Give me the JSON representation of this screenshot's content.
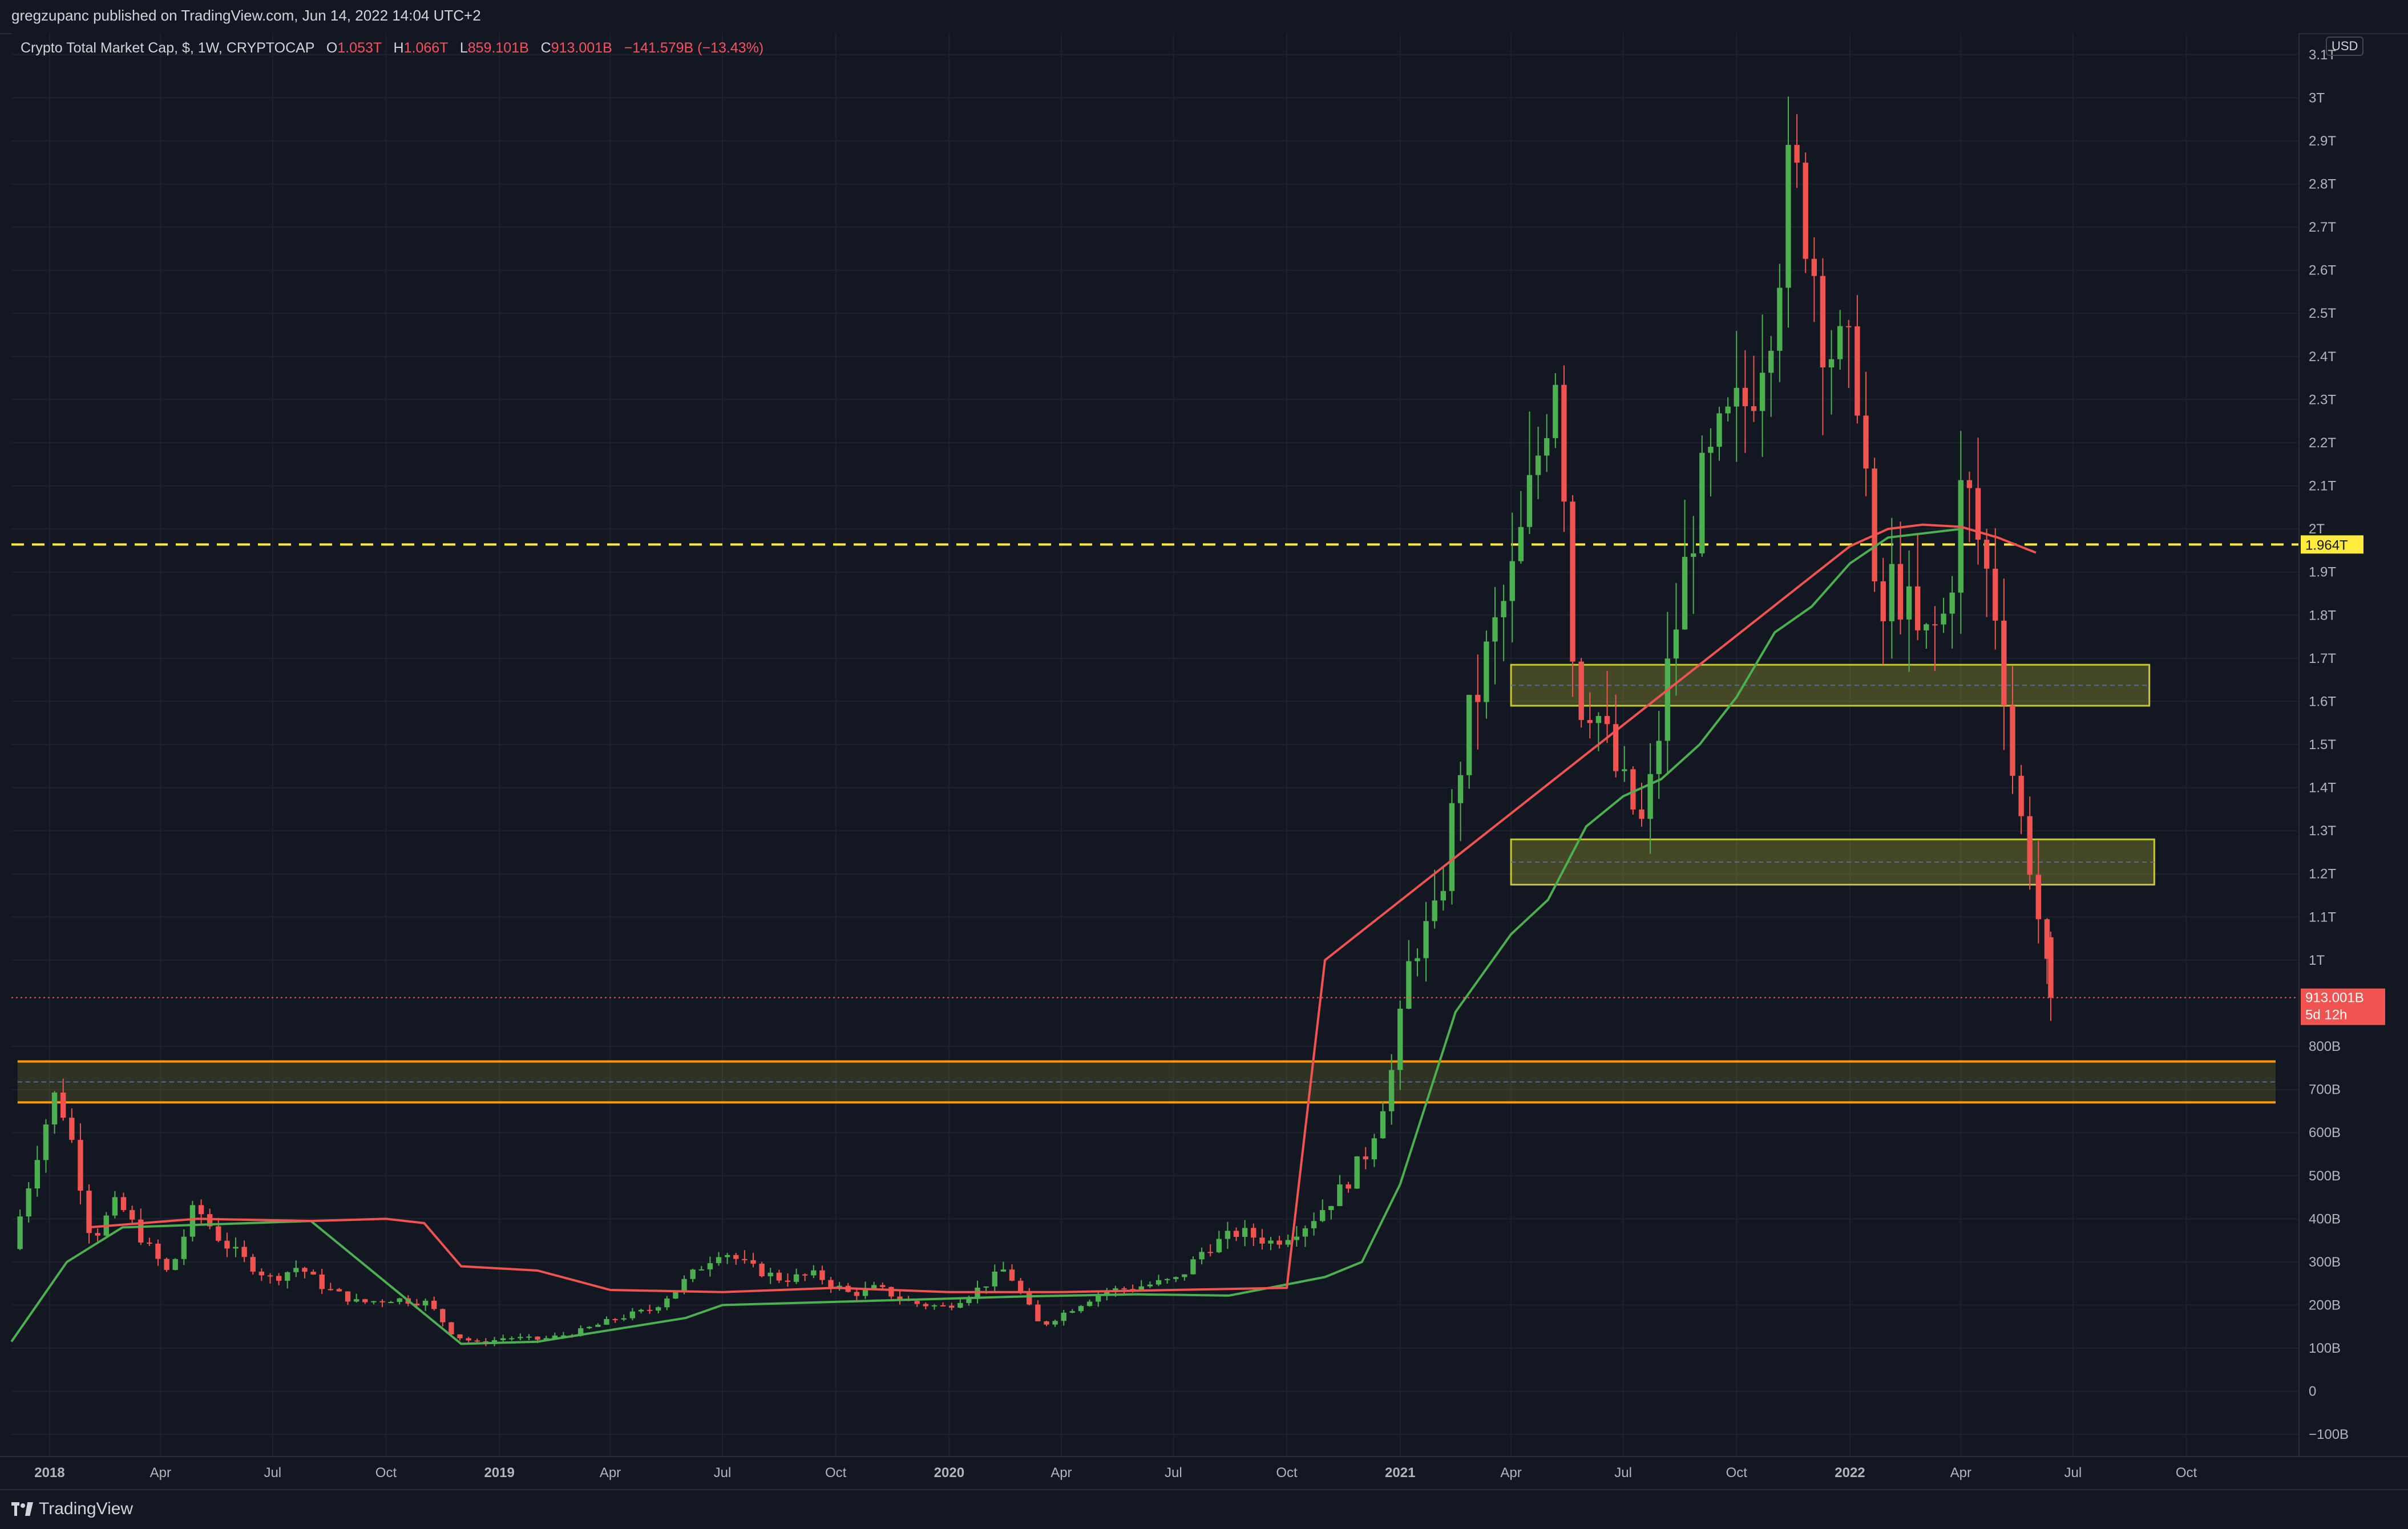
{
  "publisher_line": "gregzupanc published on TradingView.com, Jun 14, 2022 14:04 UTC+2",
  "legend": {
    "symbol": "Crypto Total Market Cap, $, 1W, CRYPTOCAP",
    "o_label": "O",
    "o_value": "1.053T",
    "h_label": "H",
    "h_value": "1.066T",
    "l_label": "L",
    "l_value": "859.101B",
    "c_label": "C",
    "c_value": "913.001B",
    "change": "−141.579B (−13.43%)"
  },
  "currency": "USD",
  "footer": {
    "brand": "TradingView"
  },
  "colors": {
    "background": "#131722",
    "up": "#4caf50",
    "down": "#f05350",
    "ma_green": "#4caf50",
    "ma_red": "#f05350",
    "resistance_line": "#ffeb3b",
    "support_band": "#ff9800",
    "zone": "#c8c832",
    "last_price": "#f05350"
  },
  "chart_data": {
    "type": "candlestick",
    "title": "Crypto Total Market Cap, $, 1W, CRYPTOCAP",
    "timeframe": "1W",
    "x_range": [
      "2017-12-01",
      "2022-12-31"
    ],
    "y_range": [
      -150,
      3150
    ],
    "y_unit": "B",
    "y_tick_labels": [
      "3.1T",
      "3T",
      "2.9T",
      "2.8T",
      "2.7T",
      "2.6T",
      "2.5T",
      "2.4T",
      "2.3T",
      "2.2T",
      "2.1T",
      "2T",
      "1.9T",
      "1.8T",
      "1.7T",
      "1.6T",
      "1.5T",
      "1.4T",
      "1.3T",
      "1.2T",
      "1.1T",
      "1T",
      "800B",
      "700B",
      "600B",
      "500B",
      "400B",
      "300B",
      "200B",
      "100B",
      "0",
      "−100B"
    ],
    "y_tick_values": [
      3100,
      3000,
      2900,
      2800,
      2700,
      2600,
      2500,
      2400,
      2300,
      2200,
      2100,
      2000,
      1900,
      1800,
      1700,
      1600,
      1500,
      1400,
      1300,
      1200,
      1100,
      1000,
      800,
      700,
      600,
      500,
      400,
      300,
      200,
      100,
      0,
      -100
    ],
    "x_ticks": [
      {
        "label": "2018",
        "date": "2018-01-01",
        "bold": true
      },
      {
        "label": "Apr",
        "date": "2018-04-01"
      },
      {
        "label": "Jul",
        "date": "2018-07-01"
      },
      {
        "label": "Oct",
        "date": "2018-10-01"
      },
      {
        "label": "2019",
        "date": "2019-01-01",
        "bold": true
      },
      {
        "label": "Apr",
        "date": "2019-04-01"
      },
      {
        "label": "Jul",
        "date": "2019-07-01"
      },
      {
        "label": "Oct",
        "date": "2019-10-01"
      },
      {
        "label": "2020",
        "date": "2020-01-01",
        "bold": true
      },
      {
        "label": "Apr",
        "date": "2020-04-01"
      },
      {
        "label": "Jul",
        "date": "2020-07-01"
      },
      {
        "label": "Oct",
        "date": "2020-10-01"
      },
      {
        "label": "2021",
        "date": "2021-01-01",
        "bold": true
      },
      {
        "label": "Apr",
        "date": "2021-04-01"
      },
      {
        "label": "Jul",
        "date": "2021-07-01"
      },
      {
        "label": "Oct",
        "date": "2021-10-01"
      },
      {
        "label": "2022",
        "date": "2022-01-01",
        "bold": true
      },
      {
        "label": "Apr",
        "date": "2022-04-01"
      },
      {
        "label": "Jul",
        "date": "2022-07-01"
      },
      {
        "label": "Oct",
        "date": "2022-10-01"
      }
    ],
    "close_path": [
      [
        "2017-12-01",
        330
      ],
      [
        "2017-12-25",
        590
      ],
      [
        "2018-01-07",
        700
      ],
      [
        "2018-01-21",
        560
      ],
      [
        "2018-02-04",
        350
      ],
      [
        "2018-02-25",
        440
      ],
      [
        "2018-03-18",
        350
      ],
      [
        "2018-04-08",
        270
      ],
      [
        "2018-04-29",
        430
      ],
      [
        "2018-05-20",
        350
      ],
      [
        "2018-06-10",
        300
      ],
      [
        "2018-06-30",
        260
      ],
      [
        "2018-07-22",
        290
      ],
      [
        "2018-08-12",
        240
      ],
      [
        "2018-09-09",
        205
      ],
      [
        "2018-10-07",
        215
      ],
      [
        "2018-11-04",
        205
      ],
      [
        "2018-11-25",
        130
      ],
      [
        "2018-12-16",
        110
      ],
      [
        "2019-01-06",
        125
      ],
      [
        "2019-02-03",
        120
      ],
      [
        "2019-03-03",
        135
      ],
      [
        "2019-04-07",
        170
      ],
      [
        "2019-05-05",
        190
      ],
      [
        "2019-06-02",
        260
      ],
      [
        "2019-06-30",
        330
      ],
      [
        "2019-07-21",
        290
      ],
      [
        "2019-08-18",
        260
      ],
      [
        "2019-09-15",
        270
      ],
      [
        "2019-10-13",
        225
      ],
      [
        "2019-11-03",
        240
      ],
      [
        "2019-12-01",
        205
      ],
      [
        "2019-12-29",
        195
      ],
      [
        "2020-01-26",
        240
      ],
      [
        "2020-02-16",
        285
      ],
      [
        "2020-03-15",
        150
      ],
      [
        "2020-04-05",
        185
      ],
      [
        "2020-05-03",
        230
      ],
      [
        "2020-06-07",
        245
      ],
      [
        "2020-07-05",
        260
      ],
      [
        "2020-07-26",
        330
      ],
      [
        "2020-08-23",
        370
      ],
      [
        "2020-09-20",
        345
      ],
      [
        "2020-10-18",
        390
      ],
      [
        "2020-11-15",
        470
      ],
      [
        "2020-12-06",
        560
      ],
      [
        "2020-12-27",
        760
      ],
      [
        "2021-01-10",
        1020
      ],
      [
        "2021-01-31",
        1100
      ],
      [
        "2021-02-21",
        1500
      ],
      [
        "2021-03-14",
        1720
      ],
      [
        "2021-04-04",
        1900
      ],
      [
        "2021-04-18",
        2100
      ],
      [
        "2021-05-09",
        2420
      ],
      [
        "2021-05-23",
        1600
      ],
      [
        "2021-06-06",
        1610
      ],
      [
        "2021-06-27",
        1420
      ],
      [
        "2021-07-18",
        1300
      ],
      [
        "2021-08-08",
        1700
      ],
      [
        "2021-08-29",
        2050
      ],
      [
        "2021-09-19",
        2200
      ],
      [
        "2021-10-10",
        2300
      ],
      [
        "2021-10-31",
        2550
      ],
      [
        "2021-11-14",
        2830
      ],
      [
        "2021-11-28",
        2700
      ],
      [
        "2021-12-12",
        2450
      ],
      [
        "2021-12-26",
        2380
      ],
      [
        "2022-01-09",
        2350
      ],
      [
        "2022-01-23",
        1720
      ],
      [
        "2022-02-06",
        1900
      ],
      [
        "2022-02-27",
        1720
      ],
      [
        "2022-03-20",
        1800
      ],
      [
        "2022-04-03",
        2120
      ],
      [
        "2022-04-17",
        1950
      ],
      [
        "2022-05-01",
        1800
      ],
      [
        "2022-05-15",
        1380
      ],
      [
        "2022-05-29",
        1210
      ],
      [
        "2022-06-05",
        1053
      ],
      [
        "2022-06-13",
        913
      ]
    ],
    "last_candle": {
      "date": "2022-06-13",
      "open": 1053,
      "high": 1066,
      "low": 859,
      "close": 913
    },
    "ma_green": [
      [
        "2017-12-01",
        115
      ],
      [
        "2018-01-15",
        300
      ],
      [
        "2018-03-01",
        380
      ],
      [
        "2018-08-01",
        395
      ],
      [
        "2018-12-01",
        110
      ],
      [
        "2019-02-01",
        115
      ],
      [
        "2019-06-01",
        170
      ],
      [
        "2019-07-01",
        200
      ],
      [
        "2019-11-01",
        210
      ],
      [
        "2020-03-01",
        220
      ],
      [
        "2020-06-01",
        225
      ],
      [
        "2020-08-15",
        222
      ],
      [
        "2020-11-01",
        265
      ],
      [
        "2020-12-01",
        300
      ],
      [
        "2021-01-01",
        480
      ],
      [
        "2021-02-15",
        880
      ],
      [
        "2021-04-01",
        1060
      ],
      [
        "2021-05-01",
        1140
      ],
      [
        "2021-06-01",
        1310
      ],
      [
        "2021-07-01",
        1380
      ],
      [
        "2021-08-01",
        1420
      ],
      [
        "2021-09-01",
        1500
      ],
      [
        "2021-10-01",
        1610
      ],
      [
        "2021-11-01",
        1760
      ],
      [
        "2021-12-01",
        1820
      ],
      [
        "2022-01-01",
        1920
      ],
      [
        "2022-02-01",
        1980
      ],
      [
        "2022-04-01",
        2000
      ]
    ],
    "ma_red": [
      [
        "2018-02-01",
        380
      ],
      [
        "2018-05-01",
        400
      ],
      [
        "2018-08-01",
        395
      ],
      [
        "2018-10-01",
        400
      ],
      [
        "2018-11-01",
        390
      ],
      [
        "2018-12-01",
        290
      ],
      [
        "2019-02-01",
        280
      ],
      [
        "2019-04-01",
        235
      ],
      [
        "2019-07-01",
        230
      ],
      [
        "2019-10-01",
        240
      ],
      [
        "2020-01-01",
        230
      ],
      [
        "2020-04-01",
        230
      ],
      [
        "2020-07-01",
        235
      ],
      [
        "2020-10-01",
        240
      ],
      [
        "2020-11-01",
        1000
      ],
      [
        "2022-01-01",
        1960
      ],
      [
        "2022-02-01",
        2000
      ],
      [
        "2022-03-01",
        2010
      ],
      [
        "2022-04-01",
        2005
      ],
      [
        "2022-05-01",
        1980
      ],
      [
        "2022-06-01",
        1945
      ]
    ],
    "resistance_line": {
      "value": 1964,
      "label": "1.964T",
      "style": "dashed"
    },
    "zones": [
      {
        "from_date": "2021-04-01",
        "to_date": "2022-09-01",
        "low": 1590,
        "high": 1685
      },
      {
        "from_date": "2021-04-01",
        "to_date": "2022-09-05",
        "low": 1175,
        "high": 1280
      }
    ],
    "support_band": {
      "from_date": "2017-12-06",
      "to_date": "2022-12-31",
      "low": 670,
      "high": 765
    },
    "last_price_label": "913.001B",
    "countdown_label": "5d 12h",
    "grid": true,
    "legend_position": "top-left"
  }
}
